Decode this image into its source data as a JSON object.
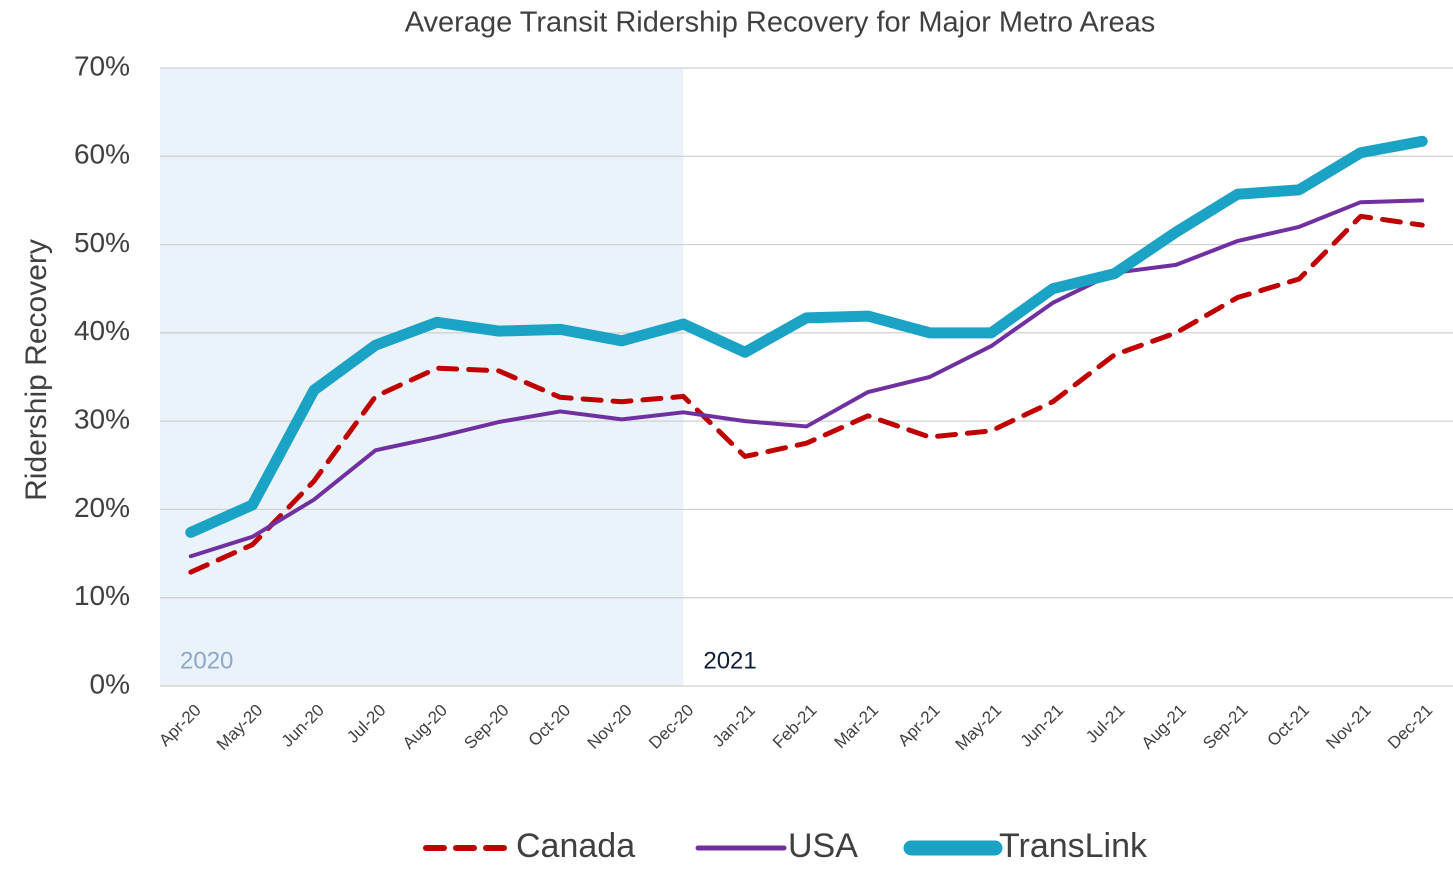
{
  "chart_data": {
    "type": "line",
    "title": "Average Transit Ridership Recovery for Major Metro Areas",
    "y_label": "Ridership Recovery",
    "categories": [
      "Apr-20",
      "May-20",
      "Jun-20",
      "Jul-20",
      "Aug-20",
      "Sep-20",
      "Oct-20",
      "Nov-20",
      "Dec-20",
      "Jan-21",
      "Feb-21",
      "Mar-21",
      "Apr-21",
      "May-21",
      "Jun-21",
      "Jul-21",
      "Aug-21",
      "Sep-21",
      "Oct-21",
      "Nov-21",
      "Dec-21"
    ],
    "series": [
      {
        "name": "Canada",
        "color": "#c00000",
        "dashed": true,
        "width": 5,
        "values": [
          12.9,
          16,
          23.2,
          32.8,
          36,
          35.7,
          32.7,
          32.2,
          32.8,
          26,
          27.5,
          30.6,
          28.2,
          28.9,
          32.2,
          37.5,
          40,
          44,
          46.1,
          53.2,
          52.2
        ]
      },
      {
        "name": "USA",
        "color": "#7030a0",
        "dashed": false,
        "width": 4,
        "values": [
          14.7,
          16.9,
          21.1,
          26.7,
          28.2,
          29.9,
          31.1,
          30.2,
          31,
          30,
          29.4,
          33.3,
          35,
          38.5,
          43.4,
          46.8,
          47.7,
          50.4,
          52,
          54.8,
          55
        ]
      },
      {
        "name": "TransLink",
        "color": "#1ba3c6",
        "dashed": false,
        "width": 11,
        "values": [
          17.4,
          20.5,
          33.5,
          38.6,
          41.2,
          40.2,
          40.4,
          39.1,
          41,
          37.8,
          41.7,
          41.9,
          40,
          40,
          45,
          46.7,
          51.4,
          55.7,
          56.2,
          60.4,
          61.7
        ]
      }
    ],
    "annotations": [
      {
        "text": "2020",
        "start": "Apr-20",
        "end": "Dec-20",
        "shaded": true,
        "color": "#8ea9c8",
        "fill": "#eaf2fa"
      },
      {
        "text": "2021",
        "start": "Jan-21",
        "color": "#0d1f3c"
      }
    ],
    "ylim": [
      0,
      70
    ],
    "yticks": [
      {
        "value": 0,
        "label": "0%"
      },
      {
        "value": 10,
        "label": "10%"
      },
      {
        "value": 20,
        "label": "20%"
      },
      {
        "value": 30,
        "label": "30%"
      },
      {
        "value": 40,
        "label": "40%"
      },
      {
        "value": 50,
        "label": "50%"
      },
      {
        "value": 60,
        "label": "60%"
      },
      {
        "value": 70,
        "label": "70%"
      }
    ],
    "grid": true,
    "legend": "bottom"
  }
}
